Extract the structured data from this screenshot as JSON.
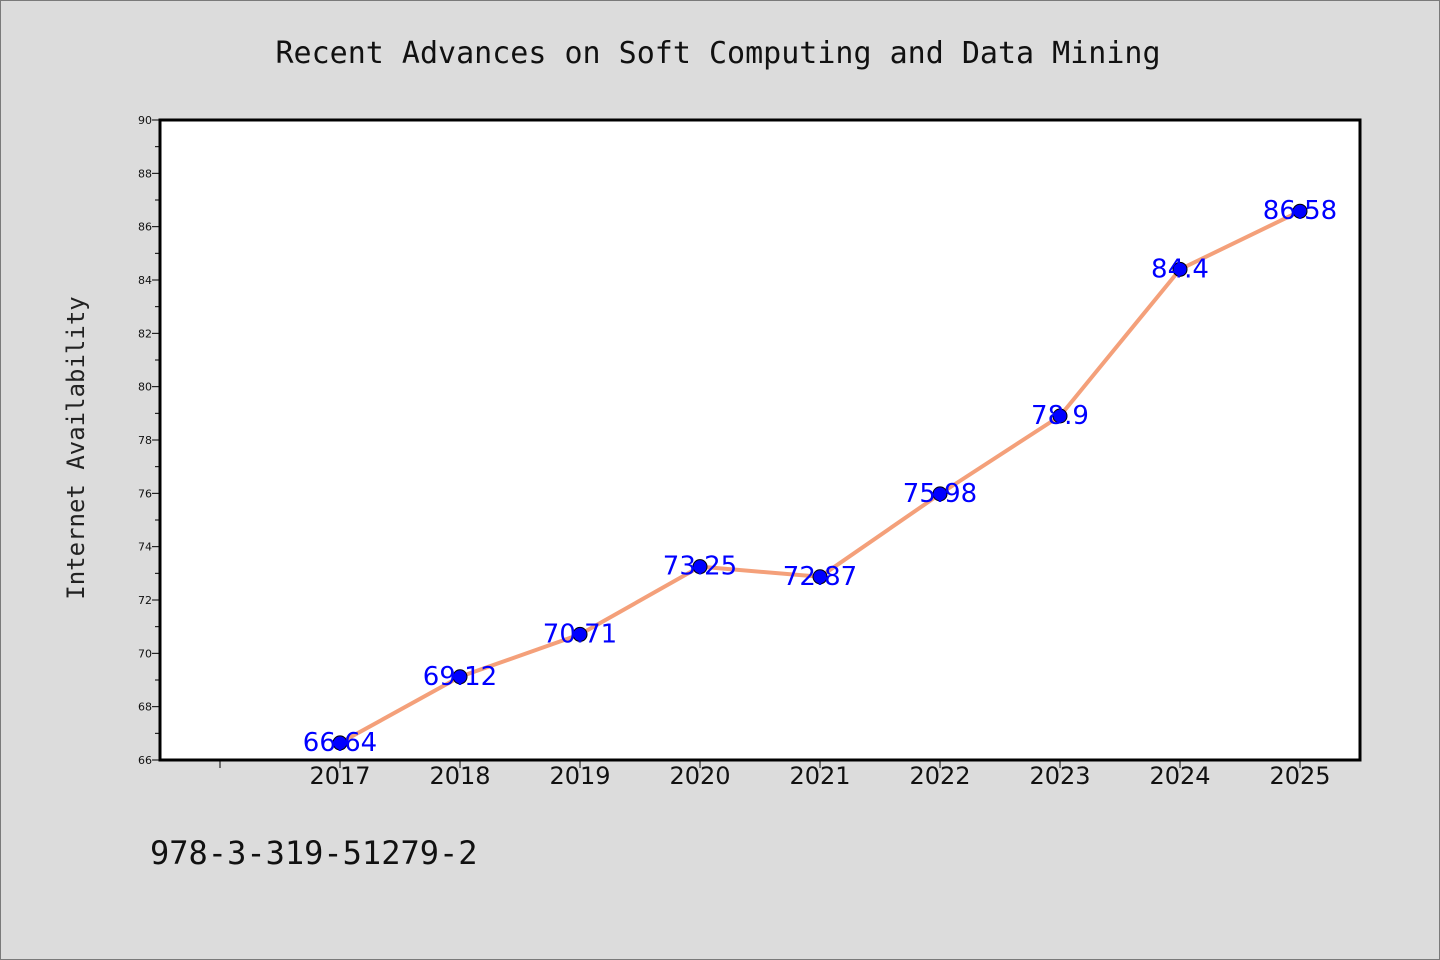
{
  "chart_data": {
    "type": "line",
    "title": "Recent Advances on Soft Computing and Data Mining",
    "xlabel": "",
    "ylabel": "Internet Availability",
    "categories": [
      "2017",
      "2018",
      "2019",
      "2020",
      "2021",
      "2022",
      "2023",
      "2024",
      "2025"
    ],
    "values": [
      66.64,
      69.12,
      70.71,
      73.25,
      72.87,
      75.98,
      78.9,
      84.4,
      86.58
    ],
    "data_labels": [
      "66.64",
      "69.12",
      "70.71",
      "73.25",
      "72.87",
      "75.98",
      "78.9",
      "84.4",
      "86.58"
    ],
    "ylim": [
      66,
      90
    ],
    "yticks": [
      66,
      68,
      70,
      72,
      74,
      76,
      78,
      80,
      82,
      84,
      86,
      88,
      90
    ],
    "grid": false,
    "legend": "none",
    "colors": {
      "line": "#f4a07a",
      "marker": "#0000ff",
      "data_label": "#0000ff",
      "plot_background": "#ffffff",
      "figure_background": "#dcdcdc"
    }
  },
  "footer": {
    "isbn": "978-3-319-51279-2"
  }
}
